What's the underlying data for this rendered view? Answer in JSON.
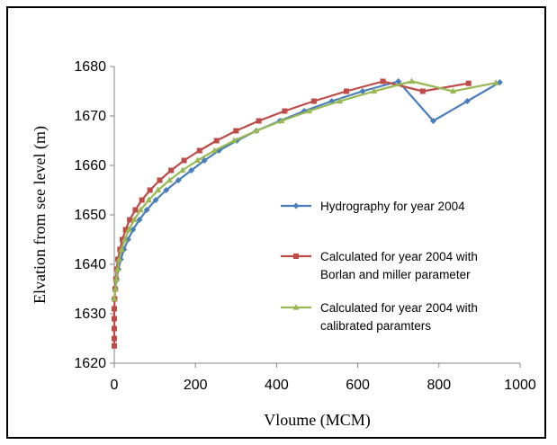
{
  "chart_data": {
    "type": "line",
    "xlabel": "Vloume (MCM)",
    "ylabel": "Elvation from see level (m)",
    "xlim": [
      0,
      1000
    ],
    "ylim": [
      1620,
      1680
    ],
    "xticks": [
      0,
      200,
      400,
      600,
      800,
      1000
    ],
    "yticks": [
      1620,
      1630,
      1640,
      1650,
      1660,
      1670,
      1680
    ],
    "grid": false,
    "legend_position": "right",
    "series": [
      {
        "name": "Hydrography for year 2004",
        "legend_lines": [
          "Hydrography for year 2004"
        ],
        "color": "#4a7ebb",
        "marker": "diamond",
        "points": [
          [
            0,
            1633
          ],
          [
            3,
            1635
          ],
          [
            6,
            1637
          ],
          [
            10,
            1639
          ],
          [
            16,
            1641
          ],
          [
            24,
            1643
          ],
          [
            34,
            1645
          ],
          [
            46,
            1647
          ],
          [
            62,
            1649
          ],
          [
            80,
            1651
          ],
          [
            102,
            1653
          ],
          [
            128,
            1655
          ],
          [
            158,
            1657
          ],
          [
            190,
            1659
          ],
          [
            222,
            1661
          ],
          [
            258,
            1663
          ],
          [
            302,
            1665
          ],
          [
            350,
            1667
          ],
          [
            408,
            1669
          ],
          [
            468,
            1671
          ],
          [
            536,
            1673
          ],
          [
            612,
            1675
          ],
          [
            700,
            1677
          ],
          [
            786,
            1669
          ],
          [
            870,
            1673
          ],
          [
            950,
            1676.8
          ]
        ]
      },
      {
        "name": "Calculated for year 2004 with Borlan and miller parameter",
        "legend_lines": [
          "Calculated for year 2004 with",
          "Borlan and miller parameter"
        ],
        "color": "#be4b48",
        "marker": "square",
        "points": [
          [
            0,
            1623.5
          ],
          [
            0,
            1625
          ],
          [
            0,
            1627
          ],
          [
            0,
            1629
          ],
          [
            0,
            1631
          ],
          [
            1,
            1633
          ],
          [
            2,
            1635
          ],
          [
            4,
            1637
          ],
          [
            6,
            1639
          ],
          [
            9,
            1641
          ],
          [
            14,
            1643
          ],
          [
            20,
            1645
          ],
          [
            28,
            1647
          ],
          [
            38,
            1649
          ],
          [
            52,
            1651
          ],
          [
            68,
            1653
          ],
          [
            88,
            1655
          ],
          [
            112,
            1657
          ],
          [
            140,
            1659
          ],
          [
            172,
            1661
          ],
          [
            210,
            1663
          ],
          [
            252,
            1665
          ],
          [
            300,
            1667
          ],
          [
            356,
            1669
          ],
          [
            420,
            1671
          ],
          [
            492,
            1673
          ],
          [
            572,
            1675
          ],
          [
            662,
            1677
          ],
          [
            760,
            1675
          ],
          [
            873,
            1676.6
          ]
        ]
      },
      {
        "name": "Calculated for year 2004 with calibrated paramters",
        "legend_lines": [
          "Calculated for year 2004 with",
          "calibrated paramters"
        ],
        "color": "#98b954",
        "marker": "triangle",
        "points": [
          [
            0,
            1633
          ],
          [
            3,
            1635
          ],
          [
            5,
            1637
          ],
          [
            8,
            1639
          ],
          [
            12,
            1641
          ],
          [
            18,
            1643
          ],
          [
            26,
            1645
          ],
          [
            36,
            1647
          ],
          [
            49,
            1649
          ],
          [
            65,
            1651
          ],
          [
            85,
            1653
          ],
          [
            108,
            1655
          ],
          [
            136,
            1657
          ],
          [
            168,
            1659
          ],
          [
            205,
            1661
          ],
          [
            247,
            1663
          ],
          [
            295,
            1665
          ],
          [
            350,
            1667
          ],
          [
            412,
            1669
          ],
          [
            480,
            1671
          ],
          [
            556,
            1673
          ],
          [
            640,
            1675
          ],
          [
            733,
            1677
          ],
          [
            835,
            1675
          ],
          [
            940,
            1676.7
          ]
        ]
      }
    ]
  }
}
